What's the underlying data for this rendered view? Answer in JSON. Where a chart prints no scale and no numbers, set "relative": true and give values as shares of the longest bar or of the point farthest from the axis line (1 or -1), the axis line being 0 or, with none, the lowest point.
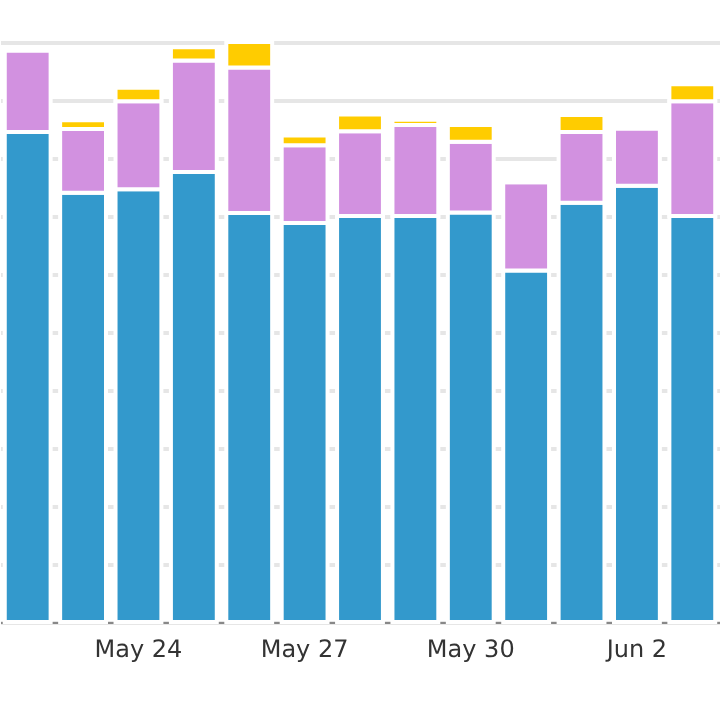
{
  "chart_data": {
    "type": "bar",
    "stacked": true,
    "relative": true,
    "grid": "y",
    "categories": [
      null,
      null,
      "May 24",
      null,
      null,
      "May 27",
      null,
      null,
      "May 30",
      null,
      null,
      "Jun 2",
      null
    ],
    "series": [
      {
        "color": "#3399cc",
        "values": [
          0.845,
          0.74,
          0.746,
          0.776,
          0.705,
          0.688,
          0.7,
          0.7,
          0.706,
          0.606,
          0.723,
          0.752,
          0.7
        ]
      },
      {
        "color": "#d291e0",
        "values": [
          0.14,
          0.11,
          0.152,
          0.192,
          0.251,
          0.134,
          0.146,
          0.157,
          0.122,
          0.152,
          0.122,
          0.099,
          0.198
        ]
      },
      {
        "color": "#ffcc00",
        "values": [
          null,
          0.015,
          0.023,
          0.023,
          0.044,
          0.017,
          0.029,
          0.009,
          0.029,
          0.006,
          0.029,
          0.006,
          0.029
        ]
      }
    ]
  }
}
